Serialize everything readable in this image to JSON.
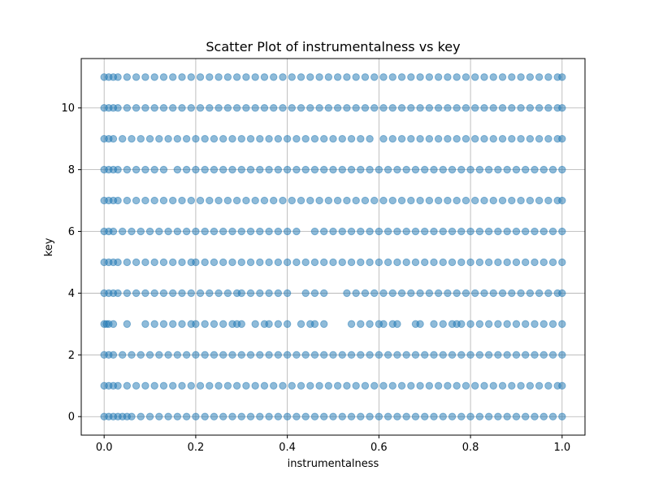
{
  "chart_data": {
    "type": "scatter",
    "title": "Scatter Plot of instrumentalness vs key",
    "xlabel": "instrumentalness",
    "ylabel": "key",
    "xlim": [
      -0.05,
      1.05
    ],
    "ylim": [
      -0.6,
      11.6
    ],
    "xticks": [
      0.0,
      0.2,
      0.4,
      0.6,
      0.8,
      1.0
    ],
    "xtick_labels": [
      "0.0",
      "0.2",
      "0.4",
      "0.6",
      "0.8",
      "1.0"
    ],
    "yticks": [
      0,
      2,
      4,
      6,
      8,
      10
    ],
    "ytick_labels": [
      "0",
      "2",
      "4",
      "6",
      "8",
      "10"
    ],
    "grid": true,
    "marker_color": "#1f77b4",
    "marker_alpha": 0.5,
    "series": [
      {
        "points_by_key": [
          {
            "y": 0,
            "x": [
              0.0,
              0.01,
              0.02,
              0.03,
              0.04,
              0.05,
              0.06,
              0.08,
              0.1,
              0.12,
              0.14,
              0.16,
              0.18,
              0.2,
              0.22,
              0.24,
              0.26,
              0.28,
              0.3,
              0.32,
              0.34,
              0.36,
              0.38,
              0.4,
              0.42,
              0.44,
              0.46,
              0.48,
              0.5,
              0.52,
              0.54,
              0.56,
              0.58,
              0.6,
              0.62,
              0.64,
              0.66,
              0.68,
              0.7,
              0.72,
              0.74,
              0.76,
              0.78,
              0.8,
              0.82,
              0.84,
              0.86,
              0.88,
              0.9,
              0.92,
              0.94,
              0.96,
              0.98,
              1.0
            ]
          },
          {
            "y": 1,
            "x": [
              0.0,
              0.01,
              0.02,
              0.03,
              0.05,
              0.07,
              0.09,
              0.11,
              0.13,
              0.15,
              0.17,
              0.19,
              0.21,
              0.23,
              0.25,
              0.27,
              0.29,
              0.31,
              0.33,
              0.35,
              0.37,
              0.39,
              0.41,
              0.43,
              0.45,
              0.47,
              0.49,
              0.51,
              0.53,
              0.55,
              0.57,
              0.59,
              0.61,
              0.63,
              0.65,
              0.67,
              0.69,
              0.71,
              0.73,
              0.75,
              0.77,
              0.79,
              0.81,
              0.83,
              0.85,
              0.87,
              0.89,
              0.91,
              0.93,
              0.95,
              0.97,
              0.99,
              1.0
            ]
          },
          {
            "y": 2,
            "x": [
              0.0,
              0.01,
              0.02,
              0.04,
              0.06,
              0.08,
              0.1,
              0.12,
              0.14,
              0.16,
              0.18,
              0.2,
              0.22,
              0.24,
              0.26,
              0.28,
              0.3,
              0.32,
              0.34,
              0.36,
              0.38,
              0.4,
              0.42,
              0.44,
              0.46,
              0.48,
              0.5,
              0.52,
              0.54,
              0.56,
              0.58,
              0.6,
              0.62,
              0.64,
              0.66,
              0.68,
              0.7,
              0.72,
              0.74,
              0.76,
              0.78,
              0.8,
              0.82,
              0.84,
              0.86,
              0.88,
              0.9,
              0.92,
              0.94,
              0.96,
              0.98,
              1.0
            ]
          },
          {
            "y": 3,
            "x": [
              0.0,
              0.005,
              0.01,
              0.02,
              0.05,
              0.09,
              0.11,
              0.13,
              0.15,
              0.17,
              0.19,
              0.2,
              0.22,
              0.24,
              0.26,
              0.28,
              0.29,
              0.3,
              0.33,
              0.35,
              0.36,
              0.38,
              0.4,
              0.43,
              0.45,
              0.46,
              0.48,
              0.54,
              0.56,
              0.58,
              0.6,
              0.61,
              0.63,
              0.64,
              0.68,
              0.69,
              0.72,
              0.74,
              0.76,
              0.77,
              0.78,
              0.8,
              0.82,
              0.84,
              0.86,
              0.88,
              0.9,
              0.92,
              0.94,
              0.96,
              0.98,
              1.0
            ]
          },
          {
            "y": 4,
            "x": [
              0.0,
              0.01,
              0.02,
              0.03,
              0.05,
              0.07,
              0.09,
              0.11,
              0.13,
              0.15,
              0.17,
              0.19,
              0.21,
              0.23,
              0.25,
              0.27,
              0.29,
              0.3,
              0.32,
              0.34,
              0.36,
              0.38,
              0.4,
              0.44,
              0.46,
              0.48,
              0.53,
              0.55,
              0.57,
              0.59,
              0.61,
              0.63,
              0.65,
              0.67,
              0.69,
              0.71,
              0.73,
              0.75,
              0.77,
              0.79,
              0.81,
              0.83,
              0.85,
              0.87,
              0.89,
              0.91,
              0.93,
              0.95,
              0.97,
              0.99,
              1.0
            ]
          },
          {
            "y": 5,
            "x": [
              0.0,
              0.01,
              0.02,
              0.03,
              0.05,
              0.07,
              0.09,
              0.11,
              0.13,
              0.15,
              0.17,
              0.19,
              0.2,
              0.22,
              0.24,
              0.26,
              0.28,
              0.3,
              0.32,
              0.34,
              0.36,
              0.38,
              0.4,
              0.42,
              0.44,
              0.46,
              0.48,
              0.5,
              0.52,
              0.54,
              0.56,
              0.58,
              0.6,
              0.62,
              0.64,
              0.66,
              0.68,
              0.7,
              0.72,
              0.74,
              0.76,
              0.78,
              0.8,
              0.82,
              0.84,
              0.86,
              0.88,
              0.9,
              0.92,
              0.94,
              0.96,
              0.98,
              1.0
            ]
          },
          {
            "y": 6,
            "x": [
              0.0,
              0.01,
              0.02,
              0.04,
              0.06,
              0.08,
              0.1,
              0.12,
              0.14,
              0.16,
              0.18,
              0.2,
              0.22,
              0.24,
              0.26,
              0.28,
              0.3,
              0.32,
              0.34,
              0.36,
              0.38,
              0.4,
              0.42,
              0.46,
              0.48,
              0.5,
              0.52,
              0.54,
              0.56,
              0.58,
              0.6,
              0.62,
              0.64,
              0.66,
              0.68,
              0.7,
              0.72,
              0.74,
              0.76,
              0.78,
              0.8,
              0.82,
              0.84,
              0.86,
              0.88,
              0.9,
              0.92,
              0.94,
              0.96,
              0.98,
              1.0
            ]
          },
          {
            "y": 7,
            "x": [
              0.0,
              0.01,
              0.02,
              0.03,
              0.05,
              0.07,
              0.09,
              0.11,
              0.13,
              0.15,
              0.17,
              0.19,
              0.21,
              0.23,
              0.25,
              0.27,
              0.29,
              0.31,
              0.33,
              0.35,
              0.37,
              0.39,
              0.41,
              0.43,
              0.45,
              0.47,
              0.49,
              0.51,
              0.53,
              0.55,
              0.57,
              0.59,
              0.61,
              0.63,
              0.65,
              0.67,
              0.69,
              0.71,
              0.73,
              0.75,
              0.77,
              0.79,
              0.81,
              0.83,
              0.85,
              0.87,
              0.89,
              0.91,
              0.93,
              0.95,
              0.97,
              0.99,
              1.0
            ]
          },
          {
            "y": 8,
            "x": [
              0.0,
              0.01,
              0.02,
              0.03,
              0.05,
              0.07,
              0.09,
              0.11,
              0.13,
              0.16,
              0.18,
              0.2,
              0.22,
              0.24,
              0.26,
              0.28,
              0.3,
              0.32,
              0.34,
              0.36,
              0.38,
              0.4,
              0.42,
              0.44,
              0.46,
              0.48,
              0.5,
              0.52,
              0.54,
              0.56,
              0.58,
              0.6,
              0.62,
              0.64,
              0.66,
              0.68,
              0.7,
              0.72,
              0.74,
              0.76,
              0.78,
              0.8,
              0.82,
              0.84,
              0.86,
              0.88,
              0.9,
              0.92,
              0.94,
              0.96,
              0.98,
              1.0
            ]
          },
          {
            "y": 9,
            "x": [
              0.0,
              0.01,
              0.02,
              0.04,
              0.06,
              0.08,
              0.1,
              0.12,
              0.14,
              0.16,
              0.18,
              0.2,
              0.22,
              0.24,
              0.26,
              0.28,
              0.3,
              0.32,
              0.34,
              0.36,
              0.38,
              0.4,
              0.42,
              0.44,
              0.46,
              0.48,
              0.5,
              0.52,
              0.54,
              0.56,
              0.58,
              0.61,
              0.63,
              0.65,
              0.67,
              0.69,
              0.71,
              0.73,
              0.75,
              0.77,
              0.79,
              0.81,
              0.83,
              0.85,
              0.87,
              0.89,
              0.91,
              0.93,
              0.95,
              0.97,
              0.99,
              1.0
            ]
          },
          {
            "y": 10,
            "x": [
              0.0,
              0.01,
              0.02,
              0.03,
              0.05,
              0.07,
              0.09,
              0.11,
              0.13,
              0.15,
              0.17,
              0.19,
              0.21,
              0.23,
              0.25,
              0.27,
              0.29,
              0.31,
              0.33,
              0.35,
              0.37,
              0.39,
              0.41,
              0.43,
              0.45,
              0.47,
              0.49,
              0.51,
              0.53,
              0.55,
              0.57,
              0.59,
              0.61,
              0.63,
              0.65,
              0.67,
              0.69,
              0.71,
              0.73,
              0.75,
              0.77,
              0.79,
              0.81,
              0.83,
              0.85,
              0.87,
              0.89,
              0.91,
              0.93,
              0.95,
              0.97,
              0.99,
              1.0
            ]
          },
          {
            "y": 11,
            "x": [
              0.0,
              0.01,
              0.02,
              0.03,
              0.05,
              0.07,
              0.09,
              0.11,
              0.13,
              0.15,
              0.17,
              0.19,
              0.21,
              0.23,
              0.25,
              0.27,
              0.29,
              0.31,
              0.33,
              0.35,
              0.37,
              0.39,
              0.41,
              0.43,
              0.45,
              0.47,
              0.49,
              0.51,
              0.53,
              0.55,
              0.57,
              0.59,
              0.61,
              0.63,
              0.65,
              0.67,
              0.69,
              0.71,
              0.73,
              0.75,
              0.77,
              0.79,
              0.81,
              0.83,
              0.85,
              0.87,
              0.89,
              0.91,
              0.93,
              0.95,
              0.97,
              0.99,
              1.0
            ]
          }
        ]
      }
    ]
  }
}
